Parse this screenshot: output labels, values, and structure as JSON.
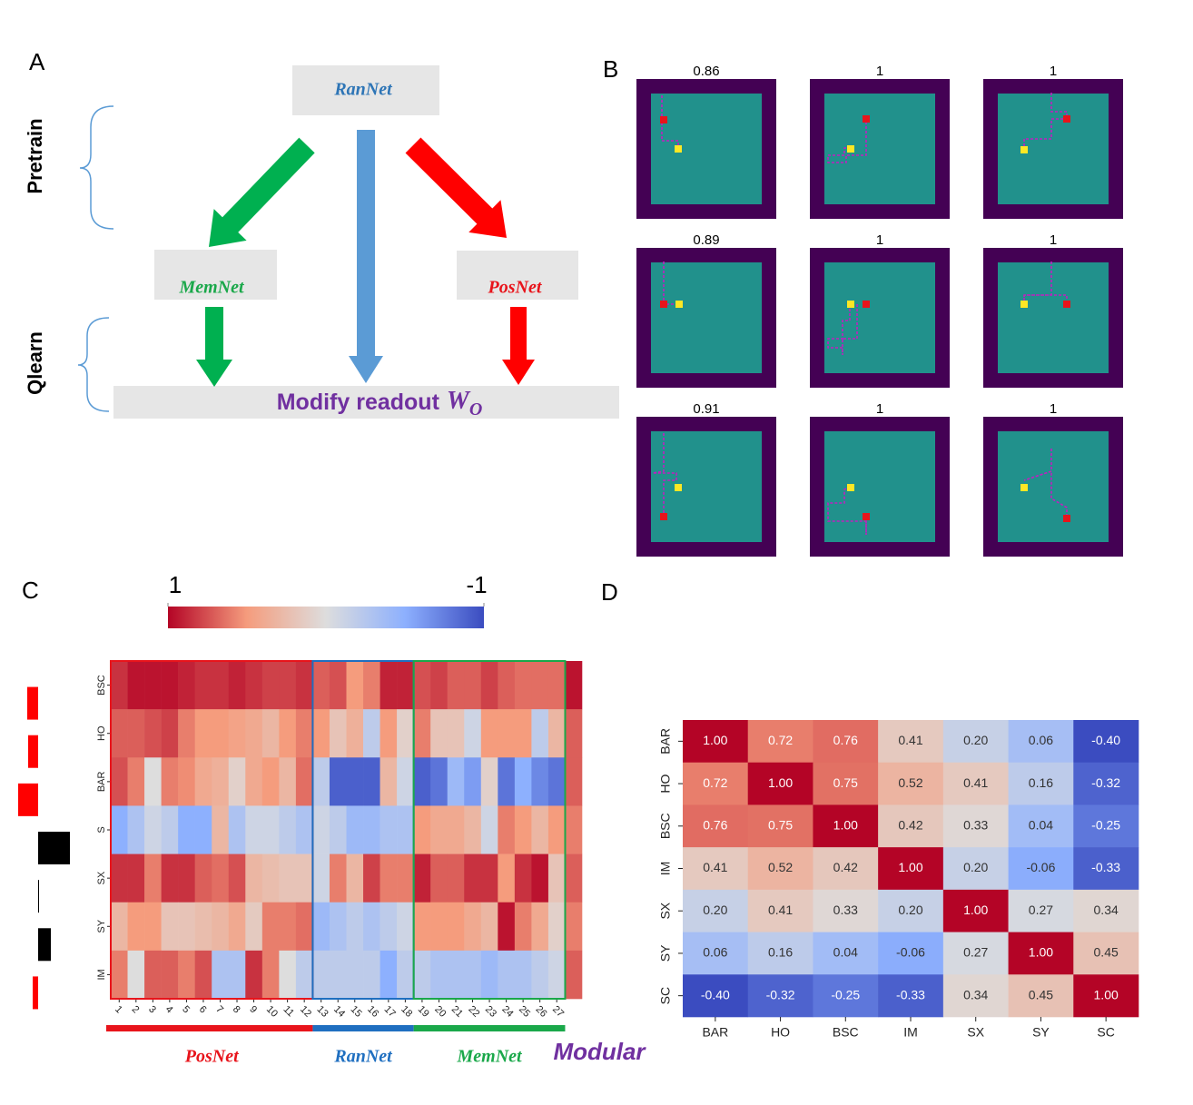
{
  "panel_labels": [
    "A",
    "B",
    "C",
    "D"
  ],
  "diagram": {
    "pretrain": "Pretrain",
    "qlearn": "Qlearn",
    "ran": "RanNet",
    "mem": "MemNet",
    "pos": "PosNet",
    "readout": "Modify readout",
    "readout_symbol": "W",
    "readout_subscript": "O"
  },
  "grids": {
    "titles": [
      0.86,
      1,
      1,
      0.89,
      1,
      1,
      0.91,
      1,
      1
    ]
  },
  "chart_data": [
    {
      "type": "heatmap",
      "rows": [
        "BSC",
        "HO",
        "BAR",
        "S",
        "SX",
        "SY",
        "IM"
      ],
      "columns": [
        1,
        2,
        3,
        4,
        5,
        6,
        7,
        8,
        9,
        10,
        11,
        12,
        13,
        14,
        15,
        16,
        17,
        18,
        19,
        20,
        21,
        22,
        23,
        24,
        25,
        26,
        27,
        null
      ],
      "values": [
        [
          0.85,
          0.95,
          0.95,
          0.95,
          0.9,
          0.85,
          0.85,
          0.9,
          0.85,
          0.8,
          0.8,
          0.85,
          0.7,
          0.75,
          0.5,
          0.6,
          0.9,
          0.9,
          0.75,
          0.8,
          0.7,
          0.7,
          0.8,
          0.7,
          0.65,
          0.65,
          0.65,
          0.95
        ],
        [
          0.7,
          0.7,
          0.75,
          0.8,
          0.6,
          0.5,
          0.5,
          0.45,
          0.4,
          0.3,
          0.5,
          0.6,
          0.5,
          0.2,
          0.35,
          -0.2,
          0.5,
          0.1,
          0.6,
          0.2,
          0.2,
          -0.1,
          0.5,
          0.5,
          0.5,
          -0.2,
          0.3,
          0.7
        ],
        [
          0.75,
          0.6,
          0.0,
          0.6,
          0.55,
          0.4,
          0.35,
          0.1,
          0.4,
          0.5,
          0.3,
          0.65,
          -0.2,
          -0.9,
          -0.9,
          -0.9,
          0.3,
          -0.1,
          -0.9,
          -0.8,
          -0.4,
          -0.6,
          0.1,
          -0.8,
          -0.5,
          -0.7,
          -0.8,
          0.7
        ],
        [
          -0.5,
          -0.3,
          -0.1,
          -0.2,
          -0.5,
          -0.5,
          0.3,
          -0.3,
          -0.1,
          -0.1,
          -0.2,
          -0.3,
          -0.1,
          -0.2,
          -0.4,
          -0.4,
          -0.3,
          -0.3,
          0.5,
          0.4,
          0.4,
          0.3,
          -0.1,
          0.6,
          0.5,
          0.3,
          0.5,
          0.6
        ],
        [
          0.85,
          0.85,
          0.6,
          0.85,
          0.85,
          0.7,
          0.65,
          0.75,
          0.3,
          0.25,
          0.2,
          0.2,
          -0.1,
          0.6,
          0.3,
          0.8,
          0.6,
          0.6,
          0.9,
          0.7,
          0.7,
          0.85,
          0.85,
          0.5,
          0.85,
          0.95,
          0.2,
          0.7
        ],
        [
          0.3,
          0.5,
          0.5,
          0.2,
          0.2,
          0.25,
          0.3,
          0.4,
          0.15,
          0.6,
          0.6,
          0.65,
          -0.4,
          -0.3,
          -0.2,
          -0.3,
          -0.2,
          -0.1,
          0.5,
          0.5,
          0.5,
          0.4,
          0.3,
          0.95,
          0.6,
          0.4,
          0.1,
          0.6
        ],
        [
          0.6,
          0.0,
          0.7,
          0.7,
          0.6,
          0.75,
          -0.3,
          -0.3,
          0.85,
          0.6,
          0.0,
          -0.2,
          -0.2,
          -0.2,
          -0.2,
          -0.2,
          -0.5,
          -0.2,
          -0.2,
          -0.3,
          -0.3,
          -0.3,
          -0.4,
          -0.3,
          -0.3,
          -0.2,
          -0.1,
          0.7
        ]
      ],
      "zlim": [
        -1,
        1
      ],
      "colormap": "coolwarm",
      "colorbar_ticks": [
        1,
        -1
      ],
      "groups": [
        {
          "name": "PosNet",
          "color": "#e8141b",
          "first": 1,
          "last": 12
        },
        {
          "name": "RanNet",
          "color": "#1f6fc0",
          "first": 13,
          "last": 18
        },
        {
          "name": "MemNet",
          "color": "#1aa84a",
          "first": 19,
          "last": 27
        }
      ],
      "extra_label": "Modular",
      "extra_color": "#7030a0",
      "row_bars": [
        12,
        11,
        22,
        -35,
        -1,
        -14,
        6
      ],
      "row_bar_colors": {
        "positive": "#ff0000",
        "negative": "#000000"
      }
    },
    {
      "type": "heatmap",
      "rows": [
        "BAR",
        "HO",
        "BSC",
        "IM",
        "SX",
        "SY",
        "SC"
      ],
      "columns": [
        "BAR",
        "HO",
        "BSC",
        "IM",
        "SX",
        "SY",
        "SC"
      ],
      "values": [
        [
          1.0,
          0.72,
          0.76,
          0.41,
          0.2,
          0.06,
          -0.4
        ],
        [
          0.72,
          1.0,
          0.75,
          0.52,
          0.41,
          0.16,
          -0.32
        ],
        [
          0.76,
          0.75,
          1.0,
          0.42,
          0.33,
          0.04,
          -0.25
        ],
        [
          0.41,
          0.52,
          0.42,
          1.0,
          0.2,
          -0.06,
          -0.33
        ],
        [
          0.2,
          0.41,
          0.33,
          0.2,
          1.0,
          0.27,
          0.34
        ],
        [
          0.06,
          0.16,
          0.04,
          -0.06,
          0.27,
          1.0,
          0.45
        ],
        [
          -0.4,
          -0.32,
          -0.25,
          -0.33,
          0.34,
          0.45,
          1.0
        ]
      ],
      "value_labels": [
        [
          "1.00",
          "0.72",
          "0.76",
          "0.41",
          "0.20",
          "0.06",
          "-0.40"
        ],
        [
          "0.72",
          "1.00",
          "0.75",
          "0.52",
          "0.41",
          "0.16",
          "-0.32"
        ],
        [
          "0.76",
          "0.75",
          "1.00",
          "0.42",
          "0.33",
          "0.04",
          "-0.25"
        ],
        [
          "0.41",
          "0.52",
          "0.42",
          "1.00",
          "0.20",
          "-0.06",
          "-0.33"
        ],
        [
          "0.20",
          "0.41",
          "0.33",
          "0.20",
          "1.00",
          "0.27",
          "0.34"
        ],
        [
          "0.06",
          "0.16",
          "0.04",
          "-0.06",
          "0.27",
          "1.00",
          "0.45"
        ],
        [
          "-0.40",
          "-0.32",
          "-0.25",
          "-0.33",
          "0.34",
          "0.45",
          "1.00"
        ]
      ],
      "zlim": [
        -0.4,
        1
      ],
      "colormap": "coolwarm"
    }
  ]
}
